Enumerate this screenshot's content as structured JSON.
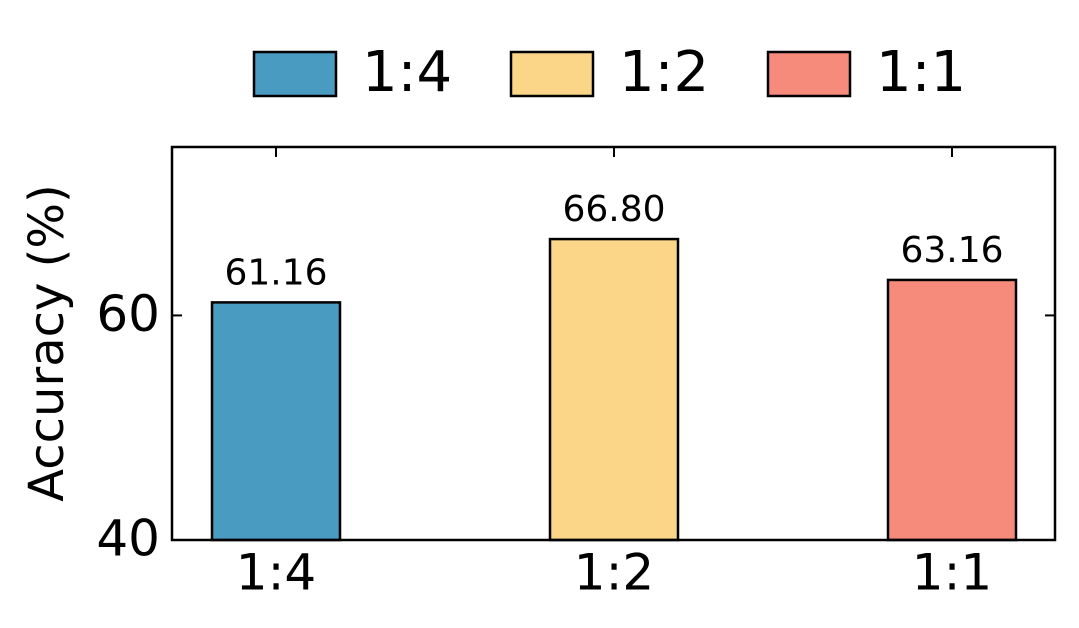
{
  "chart_data": {
    "type": "bar",
    "y_label": "Accuracy (%)",
    "categories": [
      "1:4",
      "1:2",
      "1:1"
    ],
    "series": [
      {
        "name": "1:4",
        "color": "#4a9bc2",
        "values": [
          61.16,
          null,
          null
        ],
        "value_labels": [
          "61.16",
          null,
          null
        ]
      },
      {
        "name": "1:2",
        "color": "#fcd688",
        "values": [
          null,
          66.8,
          null
        ],
        "value_labels": [
          null,
          "66.80",
          null
        ]
      },
      {
        "name": "1:1",
        "color": "#f68a7b",
        "values": [
          null,
          null,
          63.16
        ],
        "value_labels": [
          null,
          null,
          "63.16"
        ]
      }
    ],
    "ylim": [
      40,
      75
    ],
    "yticks": [
      40,
      60
    ],
    "grid": false,
    "legend": "top"
  }
}
